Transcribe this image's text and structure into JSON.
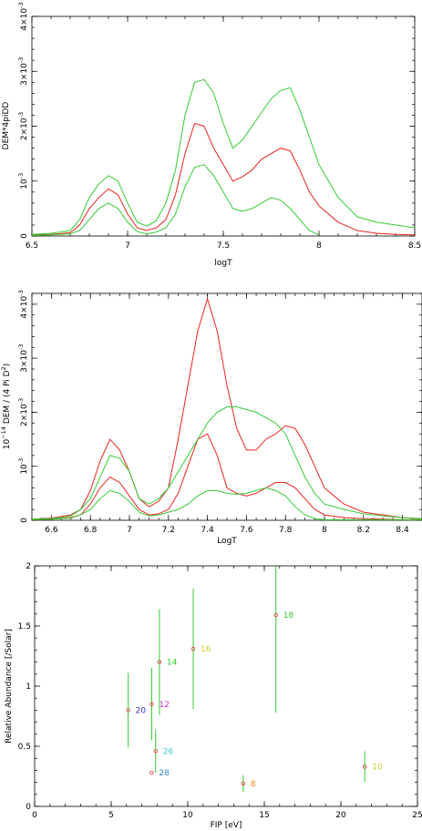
{
  "chart_data": [
    {
      "type": "line",
      "xlabel": "logT",
      "ylabel": "DEM*4piDD",
      "xlim": [
        6.5,
        8.5
      ],
      "ylim": [
        0,
        0.004
      ],
      "xticks": [
        "6.5",
        "7",
        "7.5",
        "8",
        "8.5"
      ],
      "yticks": [
        {
          "base": "0",
          "exp": ""
        },
        {
          "base": "10",
          "exp": "-3"
        },
        {
          "base": "2×10",
          "exp": "-3"
        },
        {
          "base": "3×10",
          "exp": "-3"
        },
        {
          "base": "4×10",
          "exp": "-3"
        }
      ],
      "series": [
        {
          "color": "#ee2222",
          "x": [
            6.5,
            6.6,
            6.7,
            6.75,
            6.8,
            6.85,
            6.9,
            6.95,
            7.0,
            7.05,
            7.1,
            7.15,
            7.2,
            7.25,
            7.3,
            7.35,
            7.4,
            7.45,
            7.5,
            7.55,
            7.6,
            7.65,
            7.7,
            7.75,
            7.8,
            7.85,
            7.9,
            7.95,
            8.0,
            8.1,
            8.2,
            8.3,
            8.4,
            8.5
          ],
          "y": [
            2e-05,
            3e-05,
            6e-05,
            0.0002,
            0.0005,
            0.0007,
            0.00086,
            0.00075,
            0.0004,
            0.00015,
            0.0001,
            0.00015,
            0.0003,
            0.00075,
            0.0015,
            0.00205,
            0.002,
            0.0016,
            0.0013,
            0.001,
            0.00108,
            0.0012,
            0.0014,
            0.0015,
            0.0016,
            0.00155,
            0.0012,
            0.0008,
            0.00055,
            0.00025,
            0.0001,
            5e-05,
            3e-05,
            2e-05
          ]
        },
        {
          "color": "#33cc33",
          "x": [
            6.5,
            6.6,
            6.7,
            6.75,
            6.8,
            6.85,
            6.9,
            6.95,
            7.0,
            7.05,
            7.1,
            7.15,
            7.2,
            7.25,
            7.3,
            7.35,
            7.4,
            7.45,
            7.5,
            7.55,
            7.6,
            7.65,
            7.7,
            7.75,
            7.8,
            7.85,
            7.9,
            7.95,
            8.0,
            8.1,
            8.2,
            8.3,
            8.4,
            8.5
          ],
          "y": [
            3e-05,
            5e-05,
            0.0001,
            0.0003,
            0.0007,
            0.00095,
            0.0011,
            0.001,
            0.0006,
            0.00025,
            0.00018,
            0.00028,
            0.0006,
            0.0012,
            0.0022,
            0.0028,
            0.00285,
            0.0026,
            0.00205,
            0.0016,
            0.00175,
            0.002,
            0.00225,
            0.0025,
            0.00265,
            0.0027,
            0.0023,
            0.0018,
            0.0013,
            0.0007,
            0.00035,
            0.00025,
            0.0002,
            0.00015
          ]
        },
        {
          "color": "#33cc33",
          "x": [
            6.5,
            6.6,
            6.7,
            6.75,
            6.8,
            6.85,
            6.9,
            6.95,
            7.0,
            7.05,
            7.1,
            7.15,
            7.2,
            7.25,
            7.3,
            7.35,
            7.4,
            7.45,
            7.5,
            7.55,
            7.6,
            7.65,
            7.7,
            7.75,
            7.8,
            7.85,
            7.9,
            7.95,
            8.0
          ],
          "y": [
            1e-05,
            2e-05,
            4e-05,
            0.0001,
            0.0003,
            0.0005,
            0.0006,
            0.0005,
            0.00025,
            8e-05,
            4e-05,
            7e-05,
            0.00015,
            0.0004,
            0.0009,
            0.00125,
            0.0013,
            0.0011,
            0.0008,
            0.0005,
            0.00045,
            0.0005,
            0.0006,
            0.0007,
            0.00065,
            0.0005,
            0.0003,
            0.0001,
            2e-05
          ]
        }
      ]
    },
    {
      "type": "line",
      "xlabel": "LogT",
      "ylabel": {
        "p1": "10",
        "e1": "−14",
        "p2": " DEM / (4 Pi D",
        "e2": "2",
        "p3": ")"
      },
      "xlim": [
        6.5,
        8.5
      ],
      "ylim": [
        0,
        0.0042
      ],
      "xticks": [
        "6.6",
        "6.8",
        "7",
        "7.2",
        "7.4",
        "7.6",
        "7.8",
        "8",
        "8.2",
        "8.4"
      ],
      "yticks": [
        {
          "base": "0",
          "exp": ""
        },
        {
          "base": "10",
          "exp": "-3"
        },
        {
          "base": "2×10",
          "exp": "-3"
        },
        {
          "base": "3×10",
          "exp": "-3"
        },
        {
          "base": "4×10",
          "exp": "-3"
        }
      ],
      "series": [
        {
          "color": "#ee2222",
          "x": [
            6.5,
            6.6,
            6.7,
            6.75,
            6.8,
            6.85,
            6.9,
            6.95,
            7.0,
            7.05,
            7.1,
            7.15,
            7.2,
            7.25,
            7.3,
            7.35,
            7.4,
            7.45,
            7.5,
            7.55,
            7.6,
            7.65,
            7.7,
            7.75,
            7.8,
            7.85,
            7.9,
            7.95,
            8.0,
            8.1,
            8.2,
            8.3,
            8.4,
            8.5
          ],
          "y": [
            2e-05,
            4e-05,
            0.0001,
            0.0002,
            0.00055,
            0.0011,
            0.0015,
            0.0013,
            0.0009,
            0.0004,
            0.00025,
            0.00035,
            0.0006,
            0.0015,
            0.0025,
            0.0035,
            0.0041,
            0.0035,
            0.0025,
            0.0017,
            0.0013,
            0.0013,
            0.0015,
            0.0016,
            0.00175,
            0.0017,
            0.0014,
            0.001,
            0.0006,
            0.0003,
            0.00015,
            0.0001,
            5e-05,
            2e-05
          ]
        },
        {
          "color": "#ee2222",
          "x": [
            6.5,
            6.6,
            6.7,
            6.75,
            6.8,
            6.85,
            6.9,
            6.95,
            7.0,
            7.05,
            7.1,
            7.15,
            7.2,
            7.25,
            7.3,
            7.35,
            7.4,
            7.45,
            7.5,
            7.55,
            7.6,
            7.65,
            7.7,
            7.75,
            7.8,
            7.85,
            7.9,
            7.95,
            8.0,
            8.1,
            8.2,
            8.3,
            8.4,
            8.5
          ],
          "y": [
            1e-05,
            2e-05,
            5e-05,
            0.0001,
            0.0003,
            0.0006,
            0.0008,
            0.0007,
            0.00045,
            0.0002,
            0.0001,
            0.00012,
            0.0002,
            0.0005,
            0.001,
            0.0015,
            0.0016,
            0.0012,
            0.0006,
            0.0005,
            0.00045,
            0.0005,
            0.0006,
            0.0007,
            0.0007,
            0.0006,
            0.0004,
            0.0002,
            0.0001,
            5e-05,
            3e-05,
            2e-05,
            1e-05,
            1e-05
          ]
        },
        {
          "color": "#33cc33",
          "x": [
            6.5,
            6.6,
            6.7,
            6.75,
            6.8,
            6.85,
            6.9,
            6.95,
            7.0,
            7.05,
            7.1,
            7.15,
            7.2,
            7.25,
            7.3,
            7.35,
            7.4,
            7.45,
            7.5,
            7.55,
            7.6,
            7.65,
            7.7,
            7.75,
            7.8,
            7.85,
            7.9,
            7.95,
            8.0,
            8.1,
            8.2,
            8.3,
            8.4,
            8.5
          ],
          "y": [
            2e-05,
            3e-05,
            8e-05,
            0.0002,
            0.0004,
            0.0008,
            0.0012,
            0.00115,
            0.0009,
            0.0004,
            0.0003,
            0.0004,
            0.0006,
            0.0009,
            0.0012,
            0.0015,
            0.0018,
            0.002,
            0.0021,
            0.0021,
            0.00205,
            0.002,
            0.0019,
            0.0018,
            0.0016,
            0.0012,
            0.0008,
            0.0005,
            0.0003,
            0.0002,
            0.00012,
            8e-05,
            5e-05,
            3e-05
          ]
        },
        {
          "color": "#33cc33",
          "x": [
            6.5,
            6.6,
            6.7,
            6.75,
            6.8,
            6.85,
            6.9,
            6.95,
            7.0,
            7.05,
            7.1,
            7.15,
            7.2,
            7.25,
            7.3,
            7.35,
            7.4,
            7.45,
            7.5,
            7.55,
            7.6,
            7.65,
            7.7,
            7.75,
            7.8,
            7.85,
            7.9,
            7.95,
            8.0,
            8.1,
            8.2,
            8.3,
            8.4,
            8.5
          ],
          "y": [
            1e-05,
            2e-05,
            4e-05,
            0.0001,
            0.0002,
            0.0004,
            0.00055,
            0.0005,
            0.00035,
            0.00015,
            8e-05,
            0.0001,
            0.00015,
            0.0002,
            0.0003,
            0.00045,
            0.00055,
            0.00055,
            0.0005,
            0.00048,
            0.0005,
            0.00055,
            0.0006,
            0.00055,
            0.00045,
            0.00025,
            0.0001,
            3e-05,
            1e-05,
            1e-05,
            1e-05,
            1e-05,
            1e-05,
            1e-05
          ]
        }
      ]
    },
    {
      "type": "scatter",
      "xlabel": "FIP [eV]",
      "ylabel": "Relative Abundance [/Solar]",
      "xlim": [
        0,
        25
      ],
      "ylim": [
        0,
        2
      ],
      "xticks": [
        "0",
        "5",
        "10",
        "15",
        "20",
        "25"
      ],
      "yticks": [
        "0",
        "0.5",
        "1",
        "1.5",
        "2"
      ],
      "points": [
        {
          "label": "20",
          "x": 6.11,
          "y": 0.8,
          "err_lo": 0.49,
          "err_hi": 1.11,
          "color": "#3333cc"
        },
        {
          "label": "12",
          "x": 7.65,
          "y": 0.85,
          "err_lo": 0.55,
          "err_hi": 1.15,
          "color": "#cc33cc"
        },
        {
          "label": "14",
          "x": 8.15,
          "y": 1.2,
          "err_lo": 0.76,
          "err_hi": 1.64,
          "color": "#33cc33"
        },
        {
          "label": "26",
          "x": 7.9,
          "y": 0.46,
          "err_lo": 0.28,
          "err_hi": 0.64,
          "color": "#33cccc"
        },
        {
          "label": "28",
          "x": 7.64,
          "y": 0.28,
          "err_lo": 0.28,
          "err_hi": 0.28,
          "color": "#3388cc"
        },
        {
          "label": "16",
          "x": 10.36,
          "y": 1.31,
          "err_lo": 0.81,
          "err_hi": 1.81,
          "color": "#cccc33"
        },
        {
          "label": "18",
          "x": 15.76,
          "y": 1.59,
          "err_lo": 0.78,
          "err_hi": 2.0,
          "color": "#33cc33"
        },
        {
          "label": "8",
          "x": 13.62,
          "y": 0.19,
          "err_lo": 0.12,
          "err_hi": 0.26,
          "color": "#ee8822"
        },
        {
          "label": "10",
          "x": 21.56,
          "y": 0.33,
          "err_lo": 0.2,
          "err_hi": 0.46,
          "color": "#cccc33"
        }
      ]
    }
  ]
}
